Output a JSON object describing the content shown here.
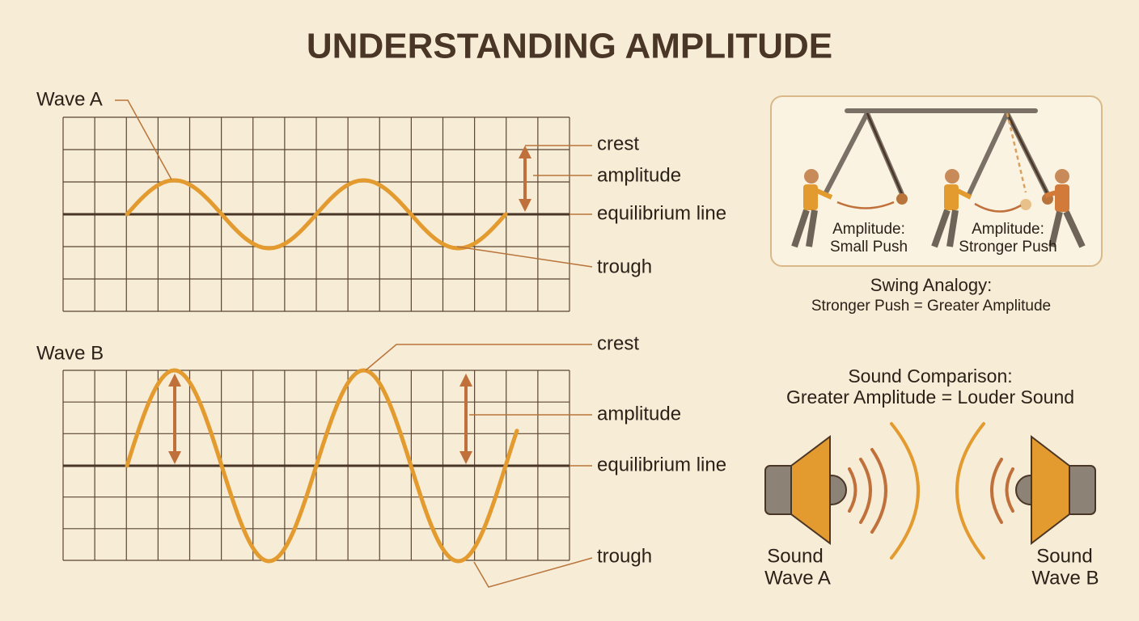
{
  "title": "UNDERSTANDING AMPLITUDE",
  "wave_a": {
    "label": "Wave A",
    "crest": "crest",
    "amplitude": "amplitude",
    "equilibrium": "equilibrium line",
    "trough": "trough"
  },
  "wave_b": {
    "label": "Wave B",
    "crest": "crest",
    "amplitude": "amplitude",
    "equilibrium": "equilibrium line",
    "trough": "trough"
  },
  "swing": {
    "left_label": [
      "Amplitude:",
      "Small Push"
    ],
    "right_label": [
      "Amplitude:",
      "Stronger Push"
    ],
    "caption_title": "Swing Analogy:",
    "caption": "Stronger Push = Greater Amplitude"
  },
  "sound": {
    "title": "Sound Comparison:",
    "subtitle": "Greater Amplitude = Louder Sound",
    "left_speaker": [
      "Sound",
      "Wave A"
    ],
    "right_speaker": [
      "Sound",
      "Wave B"
    ]
  }
}
